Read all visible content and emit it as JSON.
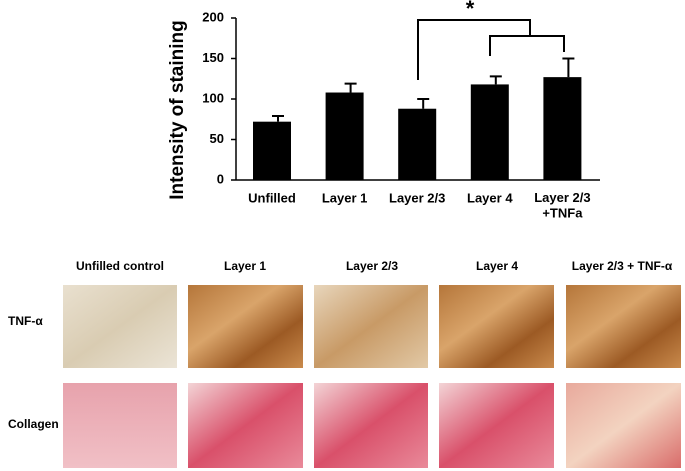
{
  "chart_data": {
    "type": "bar",
    "y_label": "Intensity of staining",
    "categories": [
      "Unfilled",
      "Layer 1",
      "Layer 2/3",
      "Layer 4",
      "Layer 2/3\n+TNFa"
    ],
    "values": [
      72,
      108,
      88,
      118,
      127
    ],
    "errors": [
      7,
      11,
      12,
      10,
      23
    ],
    "color": "#000000",
    "ylim": [
      0,
      200
    ],
    "yticks": [
      0,
      50,
      100,
      150,
      200
    ],
    "annotation": "*"
  },
  "panels": {
    "columns": [
      "Unfilled control",
      "Layer 1",
      "Layer 2/3",
      "Layer 4",
      "Layer 2/3 + TNF-α"
    ],
    "rows": [
      "TNF-α",
      "Collagen"
    ]
  }
}
